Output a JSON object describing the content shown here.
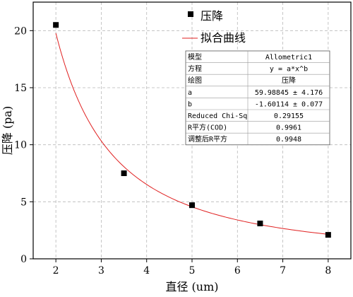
{
  "chart_data": {
    "type": "scatter",
    "xlabel": "直径 (um)",
    "ylabel": "压降 (pa)",
    "xlim": [
      1.5,
      8.5
    ],
    "ylim": [
      0,
      22.5
    ],
    "xticks": [
      2,
      3,
      4,
      5,
      6,
      7,
      8
    ],
    "yticks": [
      0,
      5,
      10,
      15,
      20
    ],
    "grid": "dashed",
    "legend_position": "top-right",
    "series": [
      {
        "name": "压降",
        "kind": "scatter",
        "marker": "square",
        "color": "#000000",
        "x": [
          2,
          3.5,
          5,
          6.5,
          8
        ],
        "y": [
          20.5,
          7.5,
          4.7,
          3.1,
          2.1
        ]
      },
      {
        "name": "拟合曲线",
        "kind": "line",
        "color": "#e02020",
        "model": "y = a*x^b",
        "a": 59.98845,
        "b": -1.60114,
        "x_range": [
          2,
          8
        ]
      }
    ],
    "fit_table": [
      [
        "模型",
        "Allometric1"
      ],
      [
        "方程",
        "y = a*x^b"
      ],
      [
        "绘图",
        "压降"
      ],
      [
        "a",
        "59.98845 ± 4.176"
      ],
      [
        "b",
        "-1.60114 ± 0.077"
      ],
      [
        "Reduced Chi-Sq",
        "0.29155"
      ],
      [
        "R平方(COD)",
        "0.9961"
      ],
      [
        "调整后R平方",
        "0.9948"
      ]
    ]
  }
}
